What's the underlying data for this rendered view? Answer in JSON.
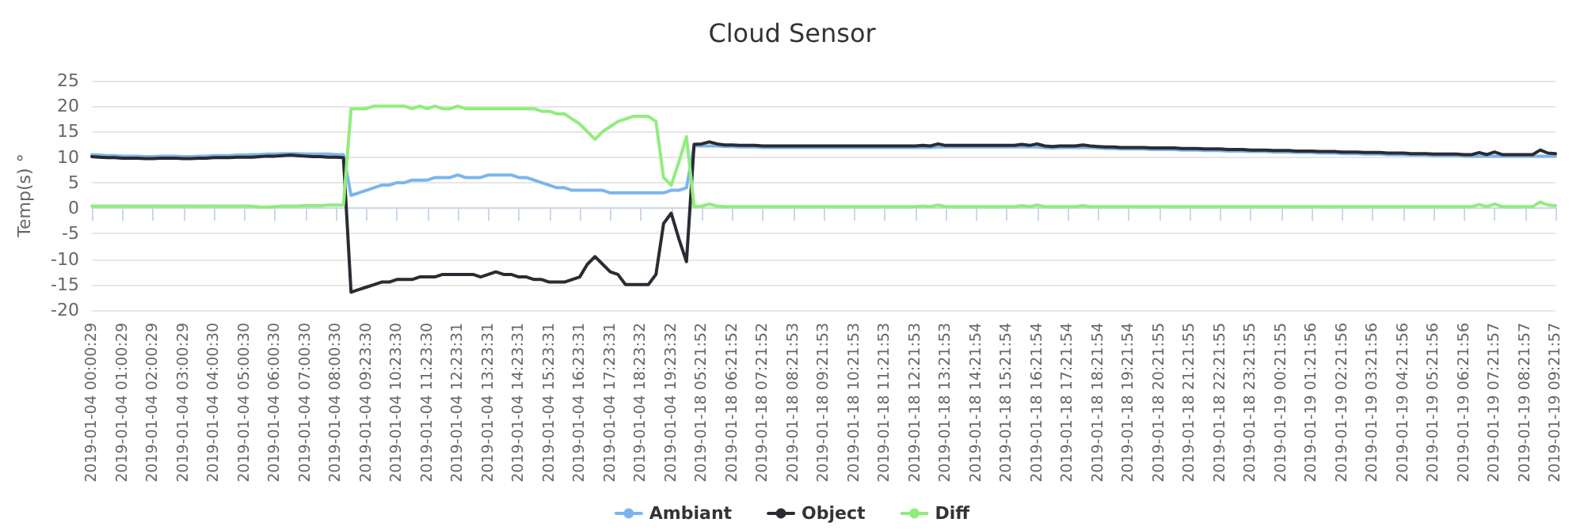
{
  "chart_data": {
    "type": "line",
    "title": "Cloud Sensor",
    "ylabel": "Temp(s) °",
    "ylim": [
      -20,
      25
    ],
    "yticks": [
      -20,
      -15,
      -10,
      -5,
      0,
      5,
      10,
      15,
      20,
      25
    ],
    "grid": "y",
    "legend": "bottom",
    "marker": "none",
    "line_style": "solid",
    "categories": [
      "2019-01-04 00:00:29",
      null,
      null,
      null,
      "2019-01-04 01:00:29",
      null,
      null,
      null,
      "2019-01-04 02:00:29",
      null,
      null,
      null,
      "2019-01-04 03:00:29",
      null,
      null,
      null,
      "2019-01-04 04:00:30",
      null,
      null,
      null,
      "2019-01-04 05:00:30",
      null,
      null,
      null,
      "2019-01-04 06:00:30",
      null,
      null,
      null,
      "2019-01-04 07:00:30",
      null,
      null,
      null,
      "2019-01-04 08:00:30",
      null,
      null,
      null,
      "2019-01-04 09:23:30",
      null,
      null,
      null,
      "2019-01-04 10:23:30",
      null,
      null,
      null,
      "2019-01-04 11:23:30",
      null,
      null,
      null,
      "2019-01-04 12:23:31",
      null,
      null,
      null,
      "2019-01-04 13:23:31",
      null,
      null,
      null,
      "2019-01-04 14:23:31",
      null,
      null,
      null,
      "2019-01-04 15:23:31",
      null,
      null,
      null,
      "2019-01-04 16:23:31",
      null,
      null,
      null,
      "2019-01-04 17:23:31",
      null,
      null,
      null,
      "2019-01-04 18:23:32",
      null,
      null,
      null,
      "2019-01-04 19:23:32",
      null,
      null,
      null,
      "2019-01-18 05:21:52",
      null,
      null,
      null,
      "2019-01-18 06:21:52",
      null,
      null,
      null,
      "2019-01-18 07:21:52",
      null,
      null,
      null,
      "2019-01-18 08:21:53",
      null,
      null,
      null,
      "2019-01-18 09:21:53",
      null,
      null,
      null,
      "2019-01-18 10:21:53",
      null,
      null,
      null,
      "2019-01-18 11:21:53",
      null,
      null,
      null,
      "2019-01-18 12:21:53",
      null,
      null,
      null,
      "2019-01-18 13:21:53",
      null,
      null,
      null,
      "2019-01-18 14:21:54",
      null,
      null,
      null,
      "2019-01-18 15:21:54",
      null,
      null,
      null,
      "2019-01-18 16:21:54",
      null,
      null,
      null,
      "2019-01-18 17:21:54",
      null,
      null,
      null,
      "2019-01-18 18:21:54",
      null,
      null,
      null,
      "2019-01-18 19:21:54",
      null,
      null,
      null,
      "2019-01-18 20:21:55",
      null,
      null,
      null,
      "2019-01-18 21:21:55",
      null,
      null,
      null,
      "2019-01-18 22:21:55",
      null,
      null,
      null,
      "2019-01-18 23:21:55",
      null,
      null,
      null,
      "2019-01-19 00:21:55",
      null,
      null,
      null,
      "2019-01-19 01:21:56",
      null,
      null,
      null,
      "2019-01-19 02:21:56",
      null,
      null,
      null,
      "2019-01-19 03:21:56",
      null,
      null,
      null,
      "2019-01-19 04:21:56",
      null,
      null,
      null,
      "2019-01-19 05:21:56",
      null,
      null,
      null,
      "2019-01-19 06:21:56",
      null,
      null,
      null,
      "2019-01-19 07:21:57",
      null,
      null,
      null,
      "2019-01-19 08:21:57",
      null,
      null,
      null,
      "2019-01-19 09:21:57"
    ],
    "series": [
      {
        "name": "Ambiant",
        "color": "#7cb5ec",
        "values": [
          10.5,
          10.4,
          10.3,
          10.3,
          10.2,
          10.2,
          10.2,
          10.1,
          10.1,
          10.2,
          10.2,
          10.2,
          10.1,
          10.1,
          10.2,
          10.2,
          10.3,
          10.3,
          10.3,
          10.4,
          10.4,
          10.5,
          10.5,
          10.6,
          10.6,
          10.7,
          10.7,
          10.7,
          10.6,
          10.6,
          10.6,
          10.6,
          10.5,
          10.5,
          2.5,
          3,
          3.5,
          4,
          4.5,
          4.5,
          5,
          5,
          5.5,
          5.5,
          5.5,
          6,
          6,
          6,
          6.5,
          6,
          6,
          6,
          6.5,
          6.5,
          6.5,
          6.5,
          6,
          6,
          5.5,
          5,
          4.5,
          4,
          4,
          3.5,
          3.5,
          3.5,
          3.5,
          3.5,
          3,
          3,
          3,
          3,
          3,
          3,
          3,
          3,
          3.5,
          3.5,
          4,
          12.2,
          12.2,
          12.2,
          12.2,
          12.1,
          12.1,
          12,
          12,
          12,
          11.9,
          11.9,
          11.9,
          11.9,
          11.9,
          11.9,
          11.9,
          11.9,
          11.9,
          11.9,
          11.9,
          11.9,
          11.9,
          11.9,
          11.9,
          11.9,
          11.9,
          11.9,
          11.9,
          11.9,
          11.9,
          11.9,
          11.9,
          12,
          12,
          12,
          12,
          12,
          12,
          12,
          12,
          12,
          12,
          12,
          12,
          12,
          12,
          11.9,
          11.8,
          11.9,
          11.9,
          11.9,
          11.9,
          11.9,
          11.8,
          11.7,
          11.7,
          11.6,
          11.6,
          11.6,
          11.6,
          11.5,
          11.5,
          11.5,
          11.5,
          11.4,
          11.4,
          11.4,
          11.3,
          11.3,
          11.3,
          11.2,
          11.2,
          11.2,
          11.1,
          11.1,
          11.1,
          11,
          11,
          11,
          10.9,
          10.9,
          10.9,
          10.8,
          10.8,
          10.8,
          10.7,
          10.7,
          10.7,
          10.6,
          10.6,
          10.6,
          10.5,
          10.5,
          10.5,
          10.4,
          10.4,
          10.4,
          10.3,
          10.3,
          10.3,
          10.3,
          10.2,
          10.2,
          10.2,
          10.2,
          10.2,
          10.2,
          10.2,
          10.2,
          10.2,
          10.2,
          10.2,
          10.2,
          10.2
        ]
      },
      {
        "name": "Object",
        "color": "#2b2b33",
        "values": [
          10.1,
          10,
          9.9,
          9.9,
          9.8,
          9.8,
          9.8,
          9.7,
          9.7,
          9.8,
          9.8,
          9.8,
          9.7,
          9.7,
          9.8,
          9.8,
          9.9,
          9.9,
          9.9,
          10,
          10,
          10,
          10.1,
          10.2,
          10.2,
          10.3,
          10.4,
          10.3,
          10.2,
          10.1,
          10.1,
          10,
          10,
          9.9,
          -16.5,
          -16,
          -15.5,
          -15,
          -14.5,
          -14.5,
          -14,
          -14,
          -14,
          -13.5,
          -13.5,
          -13.5,
          -13,
          -13,
          -13,
          -13,
          -13,
          -13.5,
          -13,
          -12.5,
          -13,
          -13,
          -13.5,
          -13.5,
          -14,
          -14,
          -14.5,
          -14.5,
          -14.5,
          -14,
          -13.5,
          -11,
          -9.5,
          -11,
          -12.5,
          -13,
          -15,
          -15,
          -15,
          -15,
          -13,
          -3,
          -1,
          -6,
          -10.5,
          12.5,
          12.6,
          13,
          12.6,
          12.4,
          12.4,
          12.3,
          12.3,
          12.3,
          12.2,
          12.2,
          12.2,
          12.2,
          12.2,
          12.2,
          12.2,
          12.2,
          12.2,
          12.2,
          12.2,
          12.2,
          12.2,
          12.2,
          12.2,
          12.2,
          12.2,
          12.2,
          12.2,
          12.2,
          12.2,
          12.3,
          12.2,
          12.6,
          12.3,
          12.3,
          12.3,
          12.3,
          12.3,
          12.3,
          12.3,
          12.3,
          12.3,
          12.3,
          12.5,
          12.3,
          12.6,
          12.2,
          12.1,
          12.2,
          12.2,
          12.2,
          12.4,
          12.2,
          12.1,
          12,
          12,
          11.9,
          11.9,
          11.9,
          11.9,
          11.8,
          11.8,
          11.8,
          11.8,
          11.7,
          11.7,
          11.7,
          11.6,
          11.6,
          11.6,
          11.5,
          11.5,
          11.5,
          11.4,
          11.4,
          11.4,
          11.3,
          11.3,
          11.3,
          11.2,
          11.2,
          11.2,
          11.1,
          11.1,
          11.1,
          11,
          11,
          11,
          10.9,
          10.9,
          10.9,
          10.8,
          10.8,
          10.8,
          10.7,
          10.7,
          10.7,
          10.6,
          10.6,
          10.6,
          10.6,
          10.5,
          10.5,
          10.9,
          10.5,
          11,
          10.5,
          10.5,
          10.5,
          10.5,
          10.5,
          11.4,
          10.8,
          10.7
        ]
      },
      {
        "name": "Diff",
        "color": "#90ed7d",
        "values": [
          0.4,
          0.4,
          0.4,
          0.4,
          0.4,
          0.4,
          0.4,
          0.4,
          0.4,
          0.4,
          0.4,
          0.4,
          0.4,
          0.4,
          0.4,
          0.4,
          0.4,
          0.4,
          0.4,
          0.4,
          0.4,
          0.4,
          0.2,
          0.2,
          0.3,
          0.4,
          0.4,
          0.4,
          0.5,
          0.5,
          0.5,
          0.6,
          0.6,
          0.6,
          19.5,
          19.5,
          19.5,
          20,
          20,
          20,
          20,
          20,
          19.5,
          20,
          19.5,
          20,
          19.5,
          19.5,
          20,
          19.5,
          19.5,
          19.5,
          19.5,
          19.5,
          19.5,
          19.5,
          19.5,
          19.5,
          19.5,
          19,
          19,
          18.5,
          18.5,
          17.5,
          16.5,
          15,
          13.5,
          15,
          16,
          17,
          17.5,
          18,
          18,
          18,
          17,
          6,
          4.5,
          9,
          14,
          0.3,
          0.4,
          0.8,
          0.4,
          0.3,
          0.3,
          0.3,
          0.3,
          0.3,
          0.3,
          0.3,
          0.3,
          0.3,
          0.3,
          0.3,
          0.3,
          0.3,
          0.3,
          0.3,
          0.3,
          0.3,
          0.3,
          0.3,
          0.3,
          0.3,
          0.3,
          0.3,
          0.3,
          0.3,
          0.3,
          0.4,
          0.3,
          0.6,
          0.3,
          0.3,
          0.3,
          0.3,
          0.3,
          0.3,
          0.3,
          0.3,
          0.3,
          0.3,
          0.5,
          0.3,
          0.6,
          0.3,
          0.3,
          0.3,
          0.3,
          0.3,
          0.5,
          0.3,
          0.3,
          0.3,
          0.3,
          0.3,
          0.3,
          0.3,
          0.3,
          0.3,
          0.3,
          0.3,
          0.3,
          0.3,
          0.3,
          0.3,
          0.3,
          0.3,
          0.3,
          0.3,
          0.3,
          0.3,
          0.3,
          0.3,
          0.3,
          0.3,
          0.3,
          0.3,
          0.3,
          0.3,
          0.3,
          0.3,
          0.3,
          0.3,
          0.3,
          0.3,
          0.3,
          0.3,
          0.3,
          0.3,
          0.3,
          0.3,
          0.3,
          0.3,
          0.3,
          0.3,
          0.3,
          0.3,
          0.3,
          0.3,
          0.3,
          0.3,
          0.7,
          0.3,
          0.8,
          0.3,
          0.3,
          0.3,
          0.3,
          0.3,
          1.2,
          0.6,
          0.5
        ]
      }
    ]
  }
}
